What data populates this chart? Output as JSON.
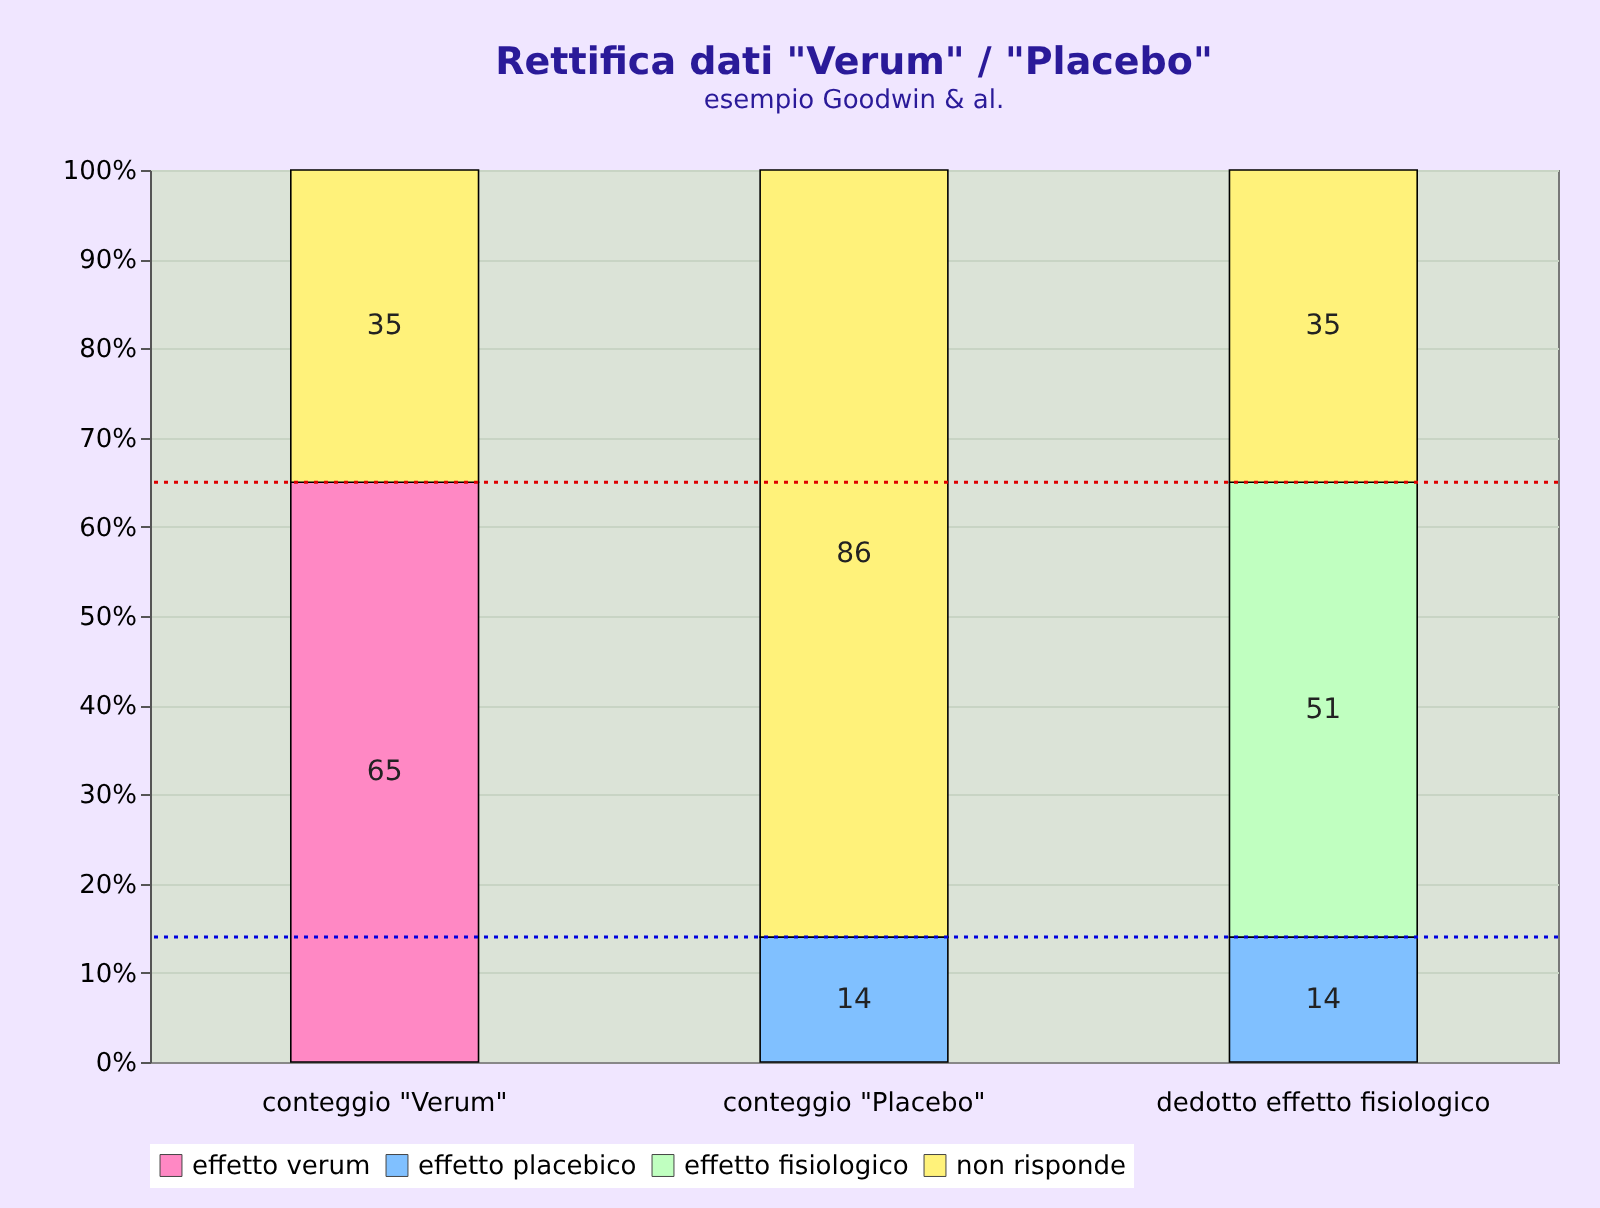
{
  "chart_data": {
    "type": "bar",
    "title": "Rettifica dati \"Verum\" / \"Placebo\"",
    "subtitle": "esempio Goodwin & al.",
    "categories": [
      "conteggio \"Verum\"",
      "conteggio \"Placebo\"",
      "dedotto effetto fisiologico"
    ],
    "stacked": true,
    "data_labels": true,
    "grid": "y",
    "legend": "bottom",
    "ylim": [
      0,
      100
    ],
    "yticks": [
      {
        "value": 0,
        "label": "0%"
      },
      {
        "value": 10,
        "label": "10%"
      },
      {
        "value": 20,
        "label": "20%"
      },
      {
        "value": 30,
        "label": "30%"
      },
      {
        "value": 40,
        "label": "40%"
      },
      {
        "value": 50,
        "label": "50%"
      },
      {
        "value": 60,
        "label": "60%"
      },
      {
        "value": 70,
        "label": "70%"
      },
      {
        "value": 80,
        "label": "80%"
      },
      {
        "value": 90,
        "label": "90%"
      },
      {
        "value": 100,
        "label": "100%"
      }
    ],
    "series": [
      {
        "name": "effetto verum",
        "color": "#ff88c4",
        "values": [
          65,
          null,
          null
        ]
      },
      {
        "name": "effetto placebico",
        "color": "#80c0ff",
        "values": [
          null,
          14,
          14
        ]
      },
      {
        "name": "effetto fisiologico",
        "color": "#c0ffc0",
        "values": [
          null,
          null,
          51
        ]
      },
      {
        "name": "non risponde",
        "color": "#fff27a",
        "values": [
          35,
          86,
          35
        ]
      }
    ],
    "ref_lines": [
      {
        "axis": "y",
        "value": 65,
        "color": "#dd0000",
        "line_style": "dotted"
      },
      {
        "axis": "y",
        "value": 14,
        "color": "#0000dd",
        "line_style": "dotted"
      }
    ]
  }
}
